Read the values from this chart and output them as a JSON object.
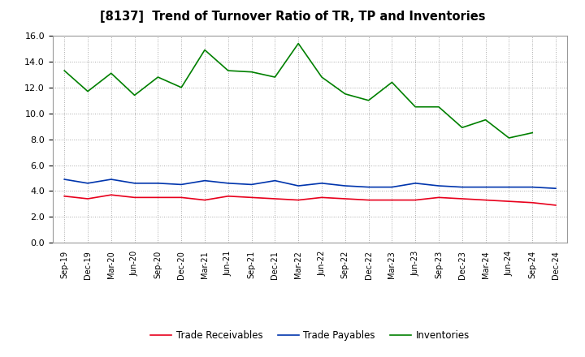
{
  "title": "[8137]  Trend of Turnover Ratio of TR, TP and Inventories",
  "labels": [
    "Sep-19",
    "Dec-19",
    "Mar-20",
    "Jun-20",
    "Sep-20",
    "Dec-20",
    "Mar-21",
    "Jun-21",
    "Sep-21",
    "Dec-21",
    "Mar-22",
    "Jun-22",
    "Sep-22",
    "Dec-22",
    "Mar-23",
    "Jun-23",
    "Sep-23",
    "Dec-23",
    "Mar-24",
    "Jun-24",
    "Sep-24",
    "Dec-24"
  ],
  "trade_receivables": [
    3.6,
    3.4,
    3.7,
    3.5,
    3.5,
    3.5,
    3.3,
    3.6,
    3.5,
    3.4,
    3.3,
    3.5,
    3.4,
    3.3,
    3.3,
    3.3,
    3.5,
    3.4,
    3.3,
    3.2,
    3.1,
    2.9
  ],
  "trade_payables": [
    4.9,
    4.6,
    4.9,
    4.6,
    4.6,
    4.5,
    4.8,
    4.6,
    4.5,
    4.8,
    4.4,
    4.6,
    4.4,
    4.3,
    4.3,
    4.6,
    4.4,
    4.3,
    4.3,
    4.3,
    4.3,
    4.2
  ],
  "inventories": [
    13.3,
    11.7,
    13.1,
    11.4,
    12.8,
    12.0,
    14.9,
    13.3,
    13.2,
    12.8,
    15.4,
    12.8,
    11.5,
    11.0,
    12.4,
    10.5,
    10.5,
    8.9,
    9.5,
    8.1,
    8.5,
    null
  ],
  "tr_color": "#e8001c",
  "tp_color": "#0035ad",
  "inv_color": "#008000",
  "ylim": [
    0.0,
    16.0
  ],
  "yticks": [
    0.0,
    2.0,
    4.0,
    6.0,
    8.0,
    10.0,
    12.0,
    14.0,
    16.0
  ],
  "bg_color": "#ffffff",
  "plot_bg_color": "#ffffff",
  "grid_color": "#aaaaaa",
  "legend_labels": [
    "Trade Receivables",
    "Trade Payables",
    "Inventories"
  ]
}
